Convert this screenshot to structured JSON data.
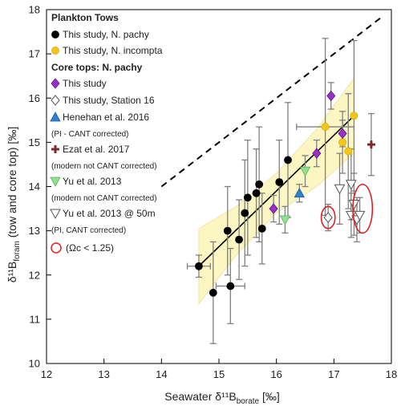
{
  "chart_data": {
    "type": "scatter",
    "xlabel": "Seawater δ¹¹B",
    "xlabel_sub": "borate",
    "xlabel_unit": " [‰]",
    "ylabel": "δ¹¹B",
    "ylabel_sub": "foram",
    "ylabel_unit": " (tow and core top) [‰]",
    "xlim": [
      12,
      18
    ],
    "ylim": [
      10,
      18
    ],
    "x_ticks": [
      "12",
      "13",
      "14",
      "15",
      "16",
      "17",
      "18"
    ],
    "y_ticks": [
      "10",
      "11",
      "12",
      "13",
      "14",
      "15",
      "16",
      "17",
      "18"
    ],
    "grid": false,
    "legend_position": "top-left",
    "colors": {
      "plankton_pachy": "#000000",
      "plankton_incompta": "#f5c518",
      "coretop_pachy": "#9b30c8",
      "station16": "#ffffff",
      "henehan": "#2f7fd0",
      "ezat": "#7b2b2b",
      "yu2013": "#90e090",
      "yu2013_50m": "#ffffff",
      "omega_circle": "#e02020",
      "confidence_band": "#fbf6c2",
      "error_bar": "#808080"
    },
    "legend": {
      "plankton_header": "Plankton Tows",
      "plankton_pachy": "This study, N. pachy",
      "plankton_incompta": "This study, N. incompta",
      "coretop_header": "Core tops: N. pachy",
      "coretop_pachy": "This study",
      "station16": "This study, Station 16",
      "henehan": "Henehan et al. 2016",
      "henehan_note": "(PI - CANT corrected)",
      "ezat": "Ezat et al. 2017",
      "ezat_note": "(modern not CANT corrected)",
      "yu2013": "Yu et al. 2013",
      "yu2013_note": "(modern not CANT corrected)",
      "yu2013_50m": "Yu et al. 2013 @ 50m",
      "yu2013_50m_note": "(PI, CANT corrected)",
      "omega": "(Ωc < 1.25)"
    },
    "one_to_one_line": {
      "x": [
        14,
        17.85
      ],
      "y": [
        14,
        17.85
      ]
    },
    "regression": {
      "x": [
        14.65,
        17.35
      ],
      "y": [
        12.2,
        15.6
      ]
    },
    "band_upper": {
      "x": [
        14.65,
        15.3,
        16.0,
        16.7,
        17.35
      ],
      "y": [
        13.05,
        13.55,
        14.3,
        15.3,
        16.45
      ]
    },
    "band_lower": {
      "x": [
        14.65,
        15.3,
        16.0,
        16.7,
        17.35
      ],
      "y": [
        11.35,
        12.45,
        13.4,
        14.0,
        14.75
      ]
    },
    "series": [
      {
        "name": "This study, N. pachy",
        "key": "plankton_pachy",
        "marker": "circle",
        "points": [
          {
            "x": 14.65,
            "y": 12.2,
            "yerr": 0.25,
            "xerr": 0.2
          },
          {
            "x": 14.9,
            "y": 11.6,
            "yerr": 1.15
          },
          {
            "x": 15.15,
            "y": 13.0,
            "yerr": 1.0
          },
          {
            "x": 15.2,
            "y": 11.75,
            "yerr": 0.85,
            "xerr": 0.25
          },
          {
            "x": 15.35,
            "y": 12.8,
            "yerr": 0.9
          },
          {
            "x": 15.45,
            "y": 13.4,
            "yerr": 1.2
          },
          {
            "x": 15.5,
            "y": 13.75,
            "yerr": 1.3
          },
          {
            "x": 15.65,
            "y": 13.85,
            "yerr": 1.0
          },
          {
            "x": 15.7,
            "y": 14.05,
            "yerr": 1.3
          },
          {
            "x": 15.75,
            "y": 13.05,
            "yerr": 0.8
          },
          {
            "x": 16.05,
            "y": 14.1,
            "yerr": 0.95
          },
          {
            "x": 16.2,
            "y": 14.6,
            "yerr": 1.3
          }
        ]
      },
      {
        "name": "This study, N. incompta",
        "key": "plankton_incompta",
        "marker": "circle",
        "points": [
          {
            "x": 16.85,
            "y": 15.35,
            "yerr": 2.0,
            "xerr": 0.5
          },
          {
            "x": 17.15,
            "y": 15.0,
            "yerr": 0.7
          },
          {
            "x": 17.25,
            "y": 14.8,
            "yerr": 1.3
          },
          {
            "x": 17.35,
            "y": 15.6,
            "yerr": 1.7
          }
        ]
      },
      {
        "name": "This study",
        "key": "coretop_pachy",
        "marker": "diamond",
        "points": [
          {
            "x": 15.95,
            "y": 13.5,
            "yerr": 0.3
          },
          {
            "x": 16.7,
            "y": 14.75,
            "yerr": 0.3
          },
          {
            "x": 16.95,
            "y": 16.05,
            "yerr": 0.3
          },
          {
            "x": 17.15,
            "y": 15.2,
            "yerr": 0.3
          }
        ]
      },
      {
        "name": "This study, Station 16",
        "key": "station16",
        "marker": "diamond-open",
        "points": [
          {
            "x": 16.9,
            "y": 13.3,
            "yerr": 0.3
          }
        ]
      },
      {
        "name": "Henehan et al. 2016",
        "key": "henehan",
        "marker": "triangle-up",
        "points": [
          {
            "x": 16.4,
            "y": 13.85,
            "yerr": 0.2
          }
        ]
      },
      {
        "name": "Ezat et al. 2017",
        "key": "ezat",
        "marker": "plus",
        "points": [
          {
            "x": 17.65,
            "y": 14.95,
            "yerr": 0.7
          }
        ]
      },
      {
        "name": "Yu et al. 2013",
        "key": "yu2013",
        "marker": "triangle-down",
        "points": [
          {
            "x": 16.15,
            "y": 13.25,
            "yerr": 0.3
          },
          {
            "x": 16.5,
            "y": 14.35,
            "yerr": 0.35
          }
        ]
      },
      {
        "name": "Yu et al. 2013 @ 50m",
        "key": "yu2013_50m",
        "marker": "triangle-down-open",
        "points": [
          {
            "x": 17.1,
            "y": 13.95,
            "yerr": 0.8
          },
          {
            "x": 17.3,
            "y": 14.05,
            "yerr": 0.8
          },
          {
            "x": 17.35,
            "y": 13.6,
            "yerr": 0.7
          },
          {
            "x": 17.3,
            "y": 13.35,
            "yerr": 0.5
          },
          {
            "x": 17.4,
            "y": 13.25,
            "yerr": 0.5
          },
          {
            "x": 17.45,
            "y": 13.35,
            "yerr": 0.4
          }
        ]
      }
    ],
    "omega_highlights": [
      {
        "cx": 16.9,
        "cy": 13.3,
        "rx": 0.12,
        "ry": 0.25
      },
      {
        "cx": 17.5,
        "cy": 13.5,
        "rx": 0.17,
        "ry": 0.55
      }
    ]
  }
}
